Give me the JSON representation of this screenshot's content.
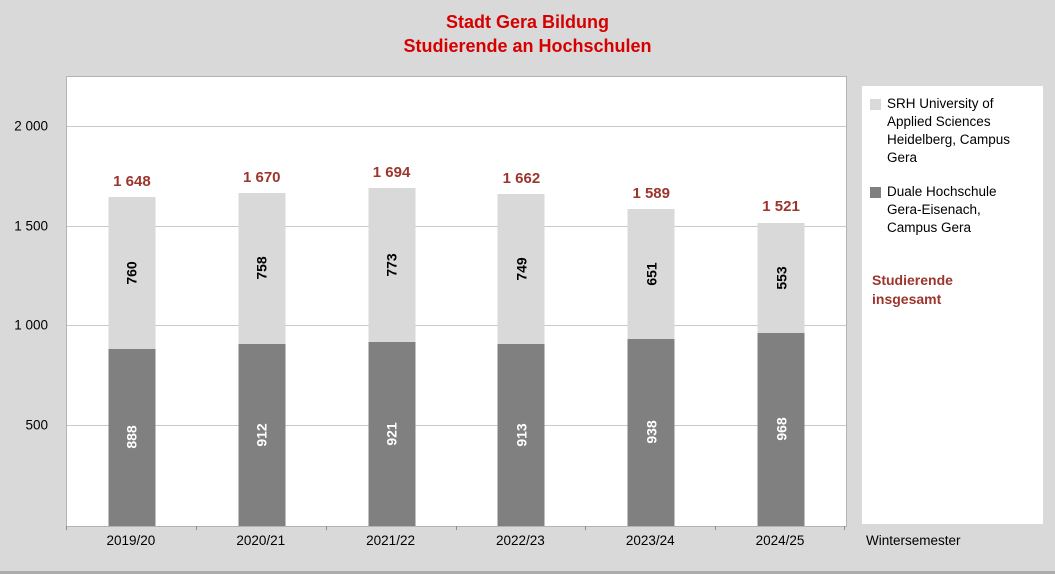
{
  "title": {
    "line1": "Stadt Gera Bildung",
    "line2": "Studierende an Hochschulen"
  },
  "colors": {
    "title": "#d60000",
    "total": "#9c352c",
    "background": "#d9d9d9",
    "plot_background": "#ffffff",
    "grid": "#c9c9c9",
    "bar_dark": "#808080",
    "bar_light": "#d9d9d9"
  },
  "chart_data": {
    "type": "bar",
    "stacked": true,
    "title": "Stadt Gera Bildung – Studierende an Hochschulen",
    "categories": [
      "2019/20",
      "2020/21",
      "2021/22",
      "2022/23",
      "2023/24",
      "2024/25"
    ],
    "series": [
      {
        "name": "Duale Hochschule Gera-Eisenach, Campus Gera",
        "values": [
          888,
          912,
          921,
          913,
          938,
          968
        ],
        "color": "#808080",
        "label_color": "#ffffff"
      },
      {
        "name": "SRH University of Applied Sciences Heidelberg, Campus Gera",
        "values": [
          760,
          758,
          773,
          749,
          651,
          553
        ],
        "color": "#d9d9d9",
        "label_color": "#000000"
      }
    ],
    "totals": [
      1648,
      1670,
      1694,
      1662,
      1589,
      1521
    ],
    "totals_display": [
      "1 648",
      "1 670",
      "1 694",
      "1 662",
      "1 589",
      "1 521"
    ],
    "ylim": [
      0,
      2250
    ],
    "y_ticks": [
      {
        "value": 500,
        "label": "500"
      },
      {
        "value": 1000,
        "label": "1 000"
      },
      {
        "value": 1500,
        "label": "1 500"
      },
      {
        "value": 2000,
        "label": "2 000"
      }
    ],
    "xlabel": "Wintersemester",
    "grid": true,
    "legend_position": "right"
  },
  "legend": {
    "items": [
      {
        "label": "SRH University of Applied Sciences Heidelberg, Campus Gera",
        "color": "#d9d9d9"
      },
      {
        "label": "Duale Hochschule Gera-Eisenach, Campus Gera",
        "color": "#808080"
      }
    ],
    "note": "Studierende insgesamt"
  },
  "x_axis_note": "Wintersemester"
}
